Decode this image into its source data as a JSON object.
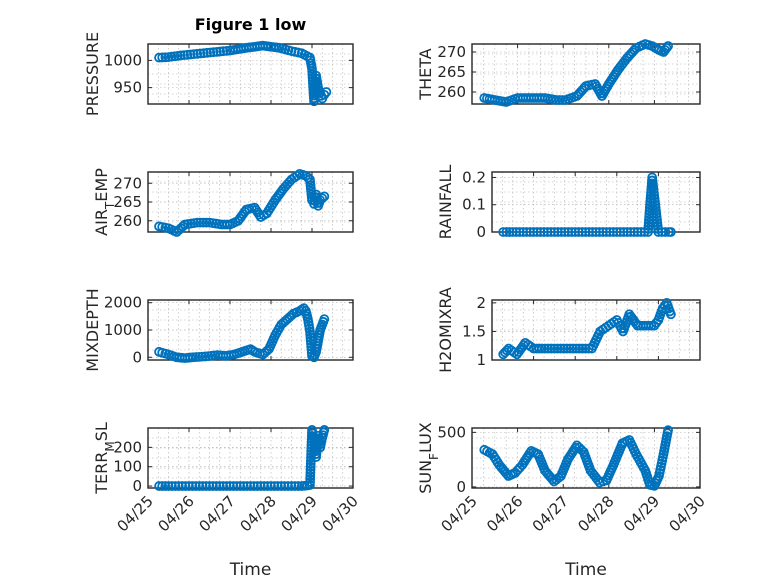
{
  "chart_data": [
    {
      "type": "scatter",
      "title": "Figure 1 low",
      "ylabel": "PRESSURE",
      "xlabel": "",
      "xlim": [
        0,
        5
      ],
      "ylim": [
        920,
        1030
      ],
      "xticks": [
        0,
        1,
        2,
        3,
        4,
        5
      ],
      "xticklabels": [
        "",
        "",
        "",
        "",
        "",
        ""
      ],
      "yticks": [
        950,
        1000
      ],
      "yticklabels": [
        "950",
        "1000"
      ],
      "grid": true,
      "series": [
        {
          "x": [
            0.27,
            0.5,
            0.8,
            1.2,
            1.6,
            2.0,
            2.4,
            2.8,
            3.2,
            3.5,
            3.75,
            3.95,
            4.0,
            4.05,
            4.1,
            4.15,
            4.2,
            4.25,
            4.3,
            4.35
          ],
          "y": [
            1005,
            1006,
            1009,
            1012,
            1015,
            1018,
            1023,
            1027,
            1023,
            1017,
            1013,
            1005,
            985,
            925,
            972,
            950,
            940,
            930,
            937,
            942
          ]
        }
      ]
    },
    {
      "type": "scatter",
      "title": "",
      "ylabel": "THETA",
      "xlabel": "",
      "xlim": [
        0,
        5
      ],
      "ylim": [
        257,
        272
      ],
      "xticks": [
        0,
        1,
        2,
        3,
        4,
        5
      ],
      "xticklabels": [
        "",
        "",
        "",
        "",
        "",
        ""
      ],
      "yticks": [
        260,
        265,
        270
      ],
      "yticklabels": [
        "260",
        "265",
        "270"
      ],
      "grid": true,
      "series": [
        {
          "x": [
            0.27,
            0.5,
            0.75,
            1.0,
            1.3,
            1.6,
            1.85,
            2.05,
            2.3,
            2.5,
            2.7,
            2.85,
            3.0,
            3.2,
            3.4,
            3.6,
            3.8,
            3.95,
            4.1,
            4.2,
            4.3
          ],
          "y": [
            258.5,
            258,
            257.5,
            258.5,
            258.5,
            258.5,
            258,
            258,
            259,
            261.5,
            262,
            259,
            262,
            265.5,
            268.5,
            271,
            272,
            271.5,
            270.5,
            270,
            271.5
          ]
        }
      ]
    },
    {
      "type": "scatter",
      "title": "",
      "ylabel": "AIR_TEMP",
      "xlabel": "",
      "xlim": [
        0,
        5
      ],
      "ylim": [
        257,
        273
      ],
      "xticks": [
        0,
        1,
        2,
        3,
        4,
        5
      ],
      "xticklabels": [
        "",
        "",
        "",
        "",
        "",
        ""
      ],
      "yticks": [
        260,
        265,
        270
      ],
      "yticklabels": [
        "260",
        "265",
        "270"
      ],
      "grid": true,
      "series": [
        {
          "x": [
            0.27,
            0.5,
            0.7,
            0.9,
            1.2,
            1.5,
            1.8,
            2.0,
            2.2,
            2.4,
            2.6,
            2.75,
            2.9,
            3.1,
            3.3,
            3.5,
            3.7,
            3.85,
            3.95,
            4.0,
            4.05,
            4.1,
            4.15,
            4.2,
            4.3
          ],
          "y": [
            258.5,
            258,
            257,
            259,
            259.5,
            259.5,
            259,
            259,
            260,
            263,
            263.5,
            261,
            262,
            265.5,
            268.5,
            271,
            272.5,
            272,
            271,
            265.5,
            264.5,
            267,
            264,
            265.5,
            266.5
          ]
        }
      ]
    },
    {
      "type": "scatter",
      "title": "",
      "ylabel": "RAINFALL",
      "xlabel": "",
      "xlim": [
        0,
        5
      ],
      "ylim": [
        0,
        0.22
      ],
      "xticks": [
        0,
        1,
        2,
        3,
        4,
        5
      ],
      "xticklabels": [
        "",
        "",
        "",
        "",
        "",
        ""
      ],
      "yticks": [
        0,
        0.1,
        0.2
      ],
      "yticklabels": [
        "0",
        "0.1",
        "0.2"
      ],
      "grid": true,
      "series": [
        {
          "x": [
            0.27,
            0.5,
            0.75,
            1.0,
            1.25,
            1.5,
            1.75,
            2.0,
            2.25,
            2.5,
            2.75,
            3.0,
            3.25,
            3.5,
            3.75,
            3.85,
            4.0,
            4.25,
            4.3
          ],
          "y": [
            0,
            0,
            0,
            0,
            0,
            0,
            0,
            0,
            0,
            0,
            0,
            0,
            0,
            0,
            0,
            0.2,
            0,
            0,
            0
          ]
        }
      ]
    },
    {
      "type": "scatter",
      "title": "",
      "ylabel": "MIXDEPTH",
      "xlabel": "",
      "xlim": [
        0,
        5
      ],
      "ylim": [
        -100,
        2100
      ],
      "xticks": [
        0,
        1,
        2,
        3,
        4,
        5
      ],
      "xticklabels": [
        "",
        "",
        "",
        "",
        "",
        ""
      ],
      "yticks": [
        0,
        1000,
        2000
      ],
      "yticklabels": [
        "0",
        "1000",
        "2000"
      ],
      "grid": true,
      "series": [
        {
          "x": [
            0.27,
            0.5,
            0.7,
            0.9,
            1.1,
            1.4,
            1.7,
            1.9,
            2.1,
            2.3,
            2.5,
            2.6,
            2.8,
            2.95,
            3.1,
            3.25,
            3.4,
            3.55,
            3.7,
            3.8,
            3.85,
            3.9,
            3.95,
            4.0,
            4.05,
            4.1,
            4.15,
            4.2,
            4.3
          ],
          "y": [
            200,
            100,
            0,
            -30,
            0,
            30,
            80,
            50,
            100,
            200,
            300,
            200,
            100,
            300,
            800,
            1200,
            1400,
            1600,
            1700,
            1800,
            1700,
            1400,
            950,
            50,
            0,
            200,
            600,
            1000,
            1400
          ]
        }
      ]
    },
    {
      "type": "scatter",
      "title": "",
      "ylabel": "H2OMIXRA",
      "xlabel": "",
      "xlim": [
        0,
        5
      ],
      "ylim": [
        1,
        2.05
      ],
      "xticks": [
        0,
        1,
        2,
        3,
        4,
        5
      ],
      "xticklabels": [
        "",
        "",
        "",
        "",
        "",
        ""
      ],
      "yticks": [
        1,
        1.5,
        2
      ],
      "yticklabels": [
        "1",
        "1.5",
        "2"
      ],
      "grid": true,
      "series": [
        {
          "x": [
            0.27,
            0.4,
            0.6,
            0.8,
            1.0,
            1.2,
            1.5,
            1.8,
            2.1,
            2.4,
            2.6,
            2.8,
            3.0,
            3.15,
            3.3,
            3.5,
            3.7,
            3.9,
            4.0,
            4.1,
            4.2,
            4.3
          ],
          "y": [
            1.1,
            1.2,
            1.1,
            1.3,
            1.2,
            1.2,
            1.2,
            1.2,
            1.2,
            1.2,
            1.5,
            1.6,
            1.7,
            1.5,
            1.8,
            1.6,
            1.6,
            1.6,
            1.7,
            1.9,
            2.0,
            1.8
          ]
        }
      ]
    },
    {
      "type": "scatter",
      "title": "",
      "ylabel": "TERR_MSL",
      "xlabel": "Time",
      "xlim": [
        0,
        5
      ],
      "ylim": [
        -10,
        300
      ],
      "xticks": [
        0,
        1,
        2,
        3,
        4,
        5
      ],
      "xticklabels": [
        "04/25",
        "04/26",
        "04/27",
        "04/28",
        "04/29",
        "04/30"
      ],
      "yticks": [
        0,
        100,
        200
      ],
      "yticklabels": [
        "0",
        "100",
        "200"
      ],
      "grid": true,
      "series": [
        {
          "x": [
            0.27,
            0.5,
            0.75,
            1.0,
            1.25,
            1.5,
            1.75,
            2.0,
            2.25,
            2.5,
            2.75,
            3.0,
            3.25,
            3.5,
            3.75,
            3.95,
            4.0,
            4.05,
            4.1,
            4.15,
            4.2,
            4.25,
            4.3
          ],
          "y": [
            0,
            0,
            0,
            0,
            0,
            0,
            0,
            0,
            0,
            0,
            0,
            0,
            0,
            0,
            0,
            5,
            290,
            240,
            150,
            260,
            200,
            250,
            290
          ]
        }
      ]
    },
    {
      "type": "scatter",
      "title": "",
      "ylabel": "SUN_FLUX",
      "xlabel": "Time",
      "xlim": [
        0,
        5
      ],
      "ylim": [
        -10,
        540
      ],
      "xticks": [
        0,
        1,
        2,
        3,
        4,
        5
      ],
      "xticklabels": [
        "04/25",
        "04/26",
        "04/27",
        "04/28",
        "04/29",
        "04/30"
      ],
      "yticks": [
        0,
        500
      ],
      "yticklabels": [
        "0",
        "500"
      ],
      "grid": true,
      "series": [
        {
          "x": [
            0.27,
            0.45,
            0.6,
            0.8,
            0.95,
            1.1,
            1.3,
            1.45,
            1.6,
            1.8,
            1.95,
            2.1,
            2.3,
            2.45,
            2.6,
            2.8,
            2.95,
            3.1,
            3.3,
            3.45,
            3.6,
            3.8,
            3.9,
            4.0,
            4.1,
            4.2,
            4.3
          ],
          "y": [
            340,
            300,
            200,
            100,
            130,
            200,
            330,
            300,
            150,
            50,
            100,
            250,
            380,
            320,
            150,
            40,
            60,
            200,
            400,
            430,
            300,
            150,
            20,
            10,
            100,
            300,
            520
          ]
        }
      ]
    }
  ]
}
